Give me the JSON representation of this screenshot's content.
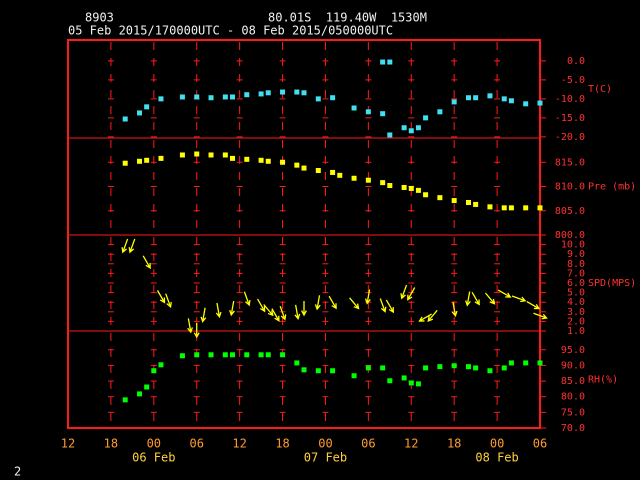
{
  "header": {
    "station": "8903",
    "location": "80.01S  119.40W  1530M",
    "period": "05 Feb 2015/170000UTC - 08 Feb 2015/050000UTC"
  },
  "footer": "2",
  "chart_data": [
    {
      "type": "scatter",
      "ylabel": "T(C)",
      "color": "#40e0f0",
      "xlim": [
        "2015-02-05T12:00",
        "2015-02-08T06:00"
      ],
      "ylim": [
        -20.3,
        5.5
      ],
      "yticks": [
        {
          "value": 0,
          "label": "0.0"
        },
        {
          "value": -5,
          "label": "-5.0"
        },
        {
          "value": -10,
          "label": "-10.0"
        },
        {
          "value": -15,
          "label": "-15.0"
        },
        {
          "value": -20,
          "label": "-20.0"
        }
      ],
      "x": [
        "2015-02-05T20:00",
        "2015-02-05T22:00",
        "2015-02-05T23:00",
        "2015-02-06T01:00",
        "2015-02-06T04:00",
        "2015-02-06T06:00",
        "2015-02-06T08:00",
        "2015-02-06T10:00",
        "2015-02-06T11:00",
        "2015-02-06T13:00",
        "2015-02-06T15:00",
        "2015-02-06T16:00",
        "2015-02-06T18:00",
        "2015-02-06T20:00",
        "2015-02-06T21:00",
        "2015-02-06T23:00",
        "2015-02-07T01:00",
        "2015-02-07T04:00",
        "2015-02-07T06:00",
        "2015-02-07T08:00",
        "2015-02-07T08:00",
        "2015-02-07T09:00",
        "2015-02-07T09:00",
        "2015-02-07T11:00",
        "2015-02-07T12:00",
        "2015-02-07T13:00",
        "2015-02-07T14:00",
        "2015-02-07T16:00",
        "2015-02-07T18:00",
        "2015-02-07T20:00",
        "2015-02-07T21:00",
        "2015-02-07T23:00",
        "2015-02-08T01:00",
        "2015-02-08T02:00",
        "2015-02-08T04:00",
        "2015-02-08T06:00"
      ],
      "values": [
        -15.3,
        -13.7,
        -12.1,
        -10.0,
        -9.5,
        -9.5,
        -9.7,
        -9.5,
        -9.5,
        -8.9,
        -8.7,
        -8.4,
        -8.2,
        -8.2,
        -8.4,
        -10.0,
        -9.7,
        -12.4,
        -13.4,
        -13.9,
        -0.3,
        -0.3,
        -19.5,
        -17.6,
        -18.4,
        -17.6,
        -15.0,
        -13.4,
        -10.8,
        -9.7,
        -9.7,
        -9.2,
        -10.0,
        -10.5,
        -11.3,
        -11.1
      ]
    },
    {
      "type": "scatter",
      "ylabel": "Pre (mb)",
      "color": "#ffff00",
      "xlim": [
        "2015-02-05T12:00",
        "2015-02-08T06:00"
      ],
      "ylim": [
        800,
        820
      ],
      "yticks": [
        {
          "value": 815,
          "label": "815.0"
        },
        {
          "value": 810,
          "label": "810.0"
        },
        {
          "value": 805,
          "label": "805.0"
        },
        {
          "value": 800,
          "label": "800.0"
        }
      ],
      "x": [
        "2015-02-05T20:00",
        "2015-02-05T22:00",
        "2015-02-05T23:00",
        "2015-02-06T01:00",
        "2015-02-06T04:00",
        "2015-02-06T06:00",
        "2015-02-06T08:00",
        "2015-02-06T10:00",
        "2015-02-06T11:00",
        "2015-02-06T13:00",
        "2015-02-06T15:00",
        "2015-02-06T16:00",
        "2015-02-06T18:00",
        "2015-02-06T20:00",
        "2015-02-06T21:00",
        "2015-02-06T23:00",
        "2015-02-07T01:00",
        "2015-02-07T02:00",
        "2015-02-07T04:00",
        "2015-02-07T06:00",
        "2015-02-07T08:00",
        "2015-02-07T09:00",
        "2015-02-07T11:00",
        "2015-02-07T12:00",
        "2015-02-07T13:00",
        "2015-02-07T14:00",
        "2015-02-07T16:00",
        "2015-02-07T18:00",
        "2015-02-07T20:00",
        "2015-02-07T21:00",
        "2015-02-07T23:00",
        "2015-02-08T01:00",
        "2015-02-08T02:00",
        "2015-02-08T04:00",
        "2015-02-08T06:00"
      ],
      "values": [
        814.8,
        815.2,
        815.4,
        815.8,
        816.5,
        816.7,
        816.5,
        816.5,
        815.8,
        815.6,
        815.4,
        815.2,
        815.0,
        814.4,
        813.8,
        813.3,
        812.9,
        812.3,
        811.7,
        811.3,
        810.8,
        810.2,
        809.8,
        809.6,
        809.2,
        808.3,
        807.7,
        807.1,
        806.7,
        806.3,
        805.8,
        805.6,
        805.6,
        805.6,
        805.6
      ]
    },
    {
      "type": "vector",
      "ylabel": "SPD(MPS)",
      "color": "#ffff00",
      "xlim": [
        "2015-02-05T12:00",
        "2015-02-08T06:00"
      ],
      "ylim": [
        1,
        11
      ],
      "yticks": [
        {
          "value": 10,
          "label": "10.0"
        },
        {
          "value": 9,
          "label": "9.0"
        },
        {
          "value": 8,
          "label": "8.0"
        },
        {
          "value": 7,
          "label": "7.0"
        },
        {
          "value": 6,
          "label": "6.0"
        },
        {
          "value": 5,
          "label": "5.0"
        },
        {
          "value": 4,
          "label": "4.0"
        },
        {
          "value": 3,
          "label": "3.0"
        },
        {
          "value": 2,
          "label": "2.0"
        },
        {
          "value": 1,
          "label": "1.0"
        }
      ],
      "x": [
        "2015-02-05T20:00",
        "2015-02-05T21:00",
        "2015-02-05T23:00",
        "2015-02-06T01:00",
        "2015-02-06T02:00",
        "2015-02-06T05:00",
        "2015-02-06T06:00",
        "2015-02-06T07:00",
        "2015-02-06T09:00",
        "2015-02-06T11:00",
        "2015-02-06T13:00",
        "2015-02-06T15:00",
        "2015-02-06T16:00",
        "2015-02-06T17:00",
        "2015-02-06T18:00",
        "2015-02-06T20:00",
        "2015-02-06T21:00",
        "2015-02-06T23:00",
        "2015-02-07T01:00",
        "2015-02-07T04:00",
        "2015-02-07T06:00",
        "2015-02-07T08:00",
        "2015-02-07T09:00",
        "2015-02-07T11:00",
        "2015-02-07T12:00",
        "2015-02-07T14:00",
        "2015-02-07T15:00",
        "2015-02-07T18:00",
        "2015-02-07T20:00",
        "2015-02-07T21:00",
        "2015-02-07T23:00",
        "2015-02-08T01:00",
        "2015-02-08T03:00",
        "2015-02-08T05:00",
        "2015-02-08T06:00"
      ],
      "values": [
        9.9,
        9.9,
        8.2,
        4.6,
        4.2,
        1.6,
        1.1,
        2.7,
        3.2,
        3.4,
        4.4,
        3.7,
        3.2,
        2.7,
        2.9,
        3.0,
        3.4,
        4.0,
        4.0,
        3.9,
        4.6,
        3.7,
        3.6,
        5.1,
        4.9,
        2.4,
        2.6,
        3.3,
        4.4,
        4.4,
        4.4,
        4.9,
        4.4,
        3.7,
        2.6
      ],
      "directions": [
        20,
        20,
        330,
        330,
        340,
        350,
        0,
        10,
        350,
        10,
        340,
        330,
        320,
        330,
        340,
        350,
        0,
        10,
        330,
        320,
        10,
        340,
        330,
        20,
        30,
        60,
        40,
        350,
        10,
        330,
        320,
        300,
        290,
        300,
        290
      ]
    },
    {
      "type": "scatter",
      "ylabel": "RH(%)",
      "color": "#00ff00",
      "xlim": [
        "2015-02-05T12:00",
        "2015-02-08T06:00"
      ],
      "ylim": [
        70,
        101
      ],
      "yticks": [
        {
          "value": 95,
          "label": "95.0"
        },
        {
          "value": 90,
          "label": "90.0"
        },
        {
          "value": 85,
          "label": "85.0"
        },
        {
          "value": 80,
          "label": "80.0"
        },
        {
          "value": 75,
          "label": "75.0"
        },
        {
          "value": 70,
          "label": "70.0"
        }
      ],
      "xticks": [
        {
          "value": "2015-02-05T12:00",
          "label": "12"
        },
        {
          "value": "2015-02-05T18:00",
          "label": "18"
        },
        {
          "value": "2015-02-06T00:00",
          "label": "00"
        },
        {
          "value": "2015-02-06T06:00",
          "label": "06"
        },
        {
          "value": "2015-02-06T12:00",
          "label": "12"
        },
        {
          "value": "2015-02-06T18:00",
          "label": "18"
        },
        {
          "value": "2015-02-07T00:00",
          "label": "00"
        },
        {
          "value": "2015-02-07T06:00",
          "label": "06"
        },
        {
          "value": "2015-02-07T12:00",
          "label": "12"
        },
        {
          "value": "2015-02-07T18:00",
          "label": "18"
        },
        {
          "value": "2015-02-08T00:00",
          "label": "00"
        },
        {
          "value": "2015-02-08T06:00",
          "label": "06"
        }
      ],
      "xdates": [
        {
          "value": "2015-02-06T00:00",
          "label": "06 Feb"
        },
        {
          "value": "2015-02-07T00:00",
          "label": "07 Feb"
        },
        {
          "value": "2015-02-08T00:00",
          "label": "08 Feb"
        }
      ],
      "x": [
        "2015-02-05T20:00",
        "2015-02-05T22:00",
        "2015-02-05T23:00",
        "2015-02-06T00:00",
        "2015-02-06T01:00",
        "2015-02-06T04:00",
        "2015-02-06T06:00",
        "2015-02-06T08:00",
        "2015-02-06T10:00",
        "2015-02-06T11:00",
        "2015-02-06T13:00",
        "2015-02-06T15:00",
        "2015-02-06T16:00",
        "2015-02-06T18:00",
        "2015-02-06T20:00",
        "2015-02-06T21:00",
        "2015-02-06T23:00",
        "2015-02-07T01:00",
        "2015-02-07T04:00",
        "2015-02-07T06:00",
        "2015-02-07T08:00",
        "2015-02-07T09:00",
        "2015-02-07T11:00",
        "2015-02-07T12:00",
        "2015-02-07T13:00",
        "2015-02-07T14:00",
        "2015-02-07T16:00",
        "2015-02-07T18:00",
        "2015-02-07T20:00",
        "2015-02-07T21:00",
        "2015-02-07T23:00",
        "2015-02-08T01:00",
        "2015-02-08T02:00",
        "2015-02-08T04:00",
        "2015-02-08T06:00"
      ],
      "values": [
        79.0,
        80.9,
        83.1,
        88.3,
        90.2,
        93.1,
        93.4,
        93.4,
        93.4,
        93.4,
        93.4,
        93.4,
        93.4,
        93.4,
        90.8,
        88.6,
        88.3,
        88.3,
        86.7,
        89.2,
        89.2,
        85.1,
        86.0,
        84.4,
        84.1,
        89.2,
        89.6,
        89.9,
        89.6,
        89.2,
        88.3,
        89.2,
        90.8,
        90.8,
        90.8
      ]
    }
  ]
}
